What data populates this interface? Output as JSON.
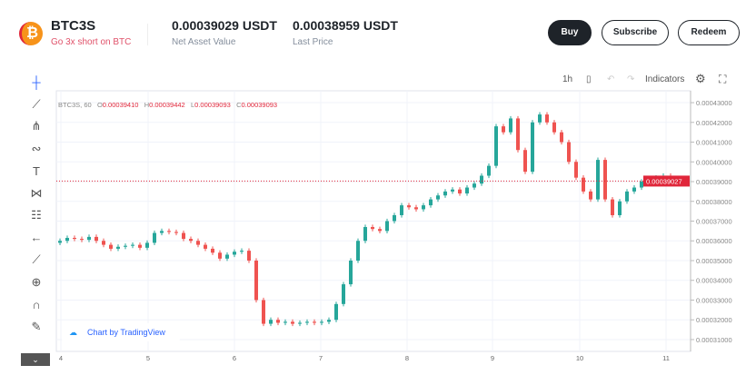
{
  "header": {
    "symbol": "BTC3S",
    "subtitle": "Go 3x short on BTC",
    "logo_glyph": "₿",
    "nav_value": "0.00039029 USDT",
    "nav_label": "Net Asset Value",
    "last_value": "0.00038959 USDT",
    "last_label": "Last Price",
    "buttons": {
      "buy": "Buy",
      "subscribe": "Subscribe",
      "redeem": "Redeem"
    }
  },
  "chart_toolbar": {
    "interval": "1h",
    "indicators": "Indicators"
  },
  "legend": {
    "symbol": "BTC3S, 60",
    "o_label": "O",
    "o": "0.00039410",
    "h_label": "H",
    "h": "0.00039442",
    "l_label": "L",
    "l": "0.00039093",
    "c_label": "C",
    "c": "0.00039093"
  },
  "attribution": "Chart by TradingView",
  "colors": {
    "up": "#26a69a",
    "down": "#ef5350",
    "price_line": "#e0263a",
    "buy_bg": "#1e2329"
  },
  "chart_data": {
    "type": "candlestick",
    "x_ticks": [
      "4",
      "5",
      "6",
      "7",
      "8",
      "9",
      "10",
      "11"
    ],
    "y_ticks": [
      "0.00043000",
      "0.00042000",
      "0.00041000",
      "0.00040000",
      "0.00039000",
      "0.00038000",
      "0.00037000",
      "0.00036000",
      "0.00035000",
      "0.00034000",
      "0.00033000",
      "0.00032000",
      "0.00031000"
    ],
    "ylim": [
      0.000304,
      0.000436
    ],
    "current_price": "0.00039027",
    "first_open": 0.000359,
    "closes": [
      0.00036,
      0.0003615,
      0.000361,
      0.0003605,
      0.000362,
      0.00036,
      0.000358,
      0.000356,
      0.000357,
      0.0003575,
      0.000358,
      0.0003565,
      0.000359,
      0.000364,
      0.000365,
      0.0003645,
      0.000364,
      0.000361,
      0.00036,
      0.000358,
      0.000356,
      0.000354,
      0.000351,
      0.000353,
      0.0003545,
      0.000355,
      0.00035,
      0.00033,
      0.000318,
      0.00032,
      0.0003185,
      0.000319,
      0.000318,
      0.0003185,
      0.000319,
      0.0003185,
      0.000319,
      0.00032,
      0.000328,
      0.000338,
      0.00035,
      0.00036,
      0.000367,
      0.000366,
      0.000365,
      0.00037,
      0.000373,
      0.000378,
      0.000377,
      0.000376,
      0.000378,
      0.000381,
      0.000383,
      0.000385,
      0.000386,
      0.000384,
      0.000387,
      0.000389,
      0.000393,
      0.000398,
      0.000418,
      0.000415,
      0.000422,
      0.000406,
      0.000395,
      0.00042,
      0.000424,
      0.00042,
      0.000415,
      0.00041,
      0.0004,
      0.000392,
      0.000385,
      0.000381,
      0.000401,
      0.000381,
      0.000373,
      0.00038,
      0.000385,
      0.000387,
      0.00039,
      0.000391,
      0.000392,
      0.000393,
      0.0003903
    ]
  }
}
